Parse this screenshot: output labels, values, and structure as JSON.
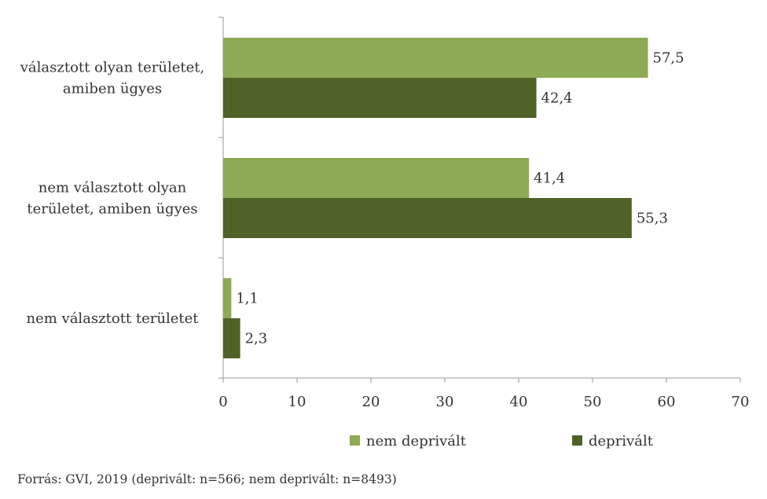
{
  "chart_data": {
    "type": "bar",
    "orientation": "horizontal",
    "categories": [
      [
        "választott olyan területet,",
        "amiben ügyes"
      ],
      [
        "nem választott olyan",
        "területet, amiben ügyes"
      ],
      [
        "nem választott területet"
      ]
    ],
    "series": [
      {
        "name": "nem deprivált",
        "color": "#8faa55",
        "values": [
          57.5,
          41.4,
          1.1
        ],
        "labels": [
          "57,5",
          "41,4",
          "1,1"
        ]
      },
      {
        "name": "deprivált",
        "color": "#4f6228",
        "values": [
          42.4,
          55.3,
          2.3
        ],
        "labels": [
          "42,4",
          "55,3",
          "2,3"
        ]
      }
    ],
    "xlim": [
      0,
      70
    ],
    "xticks": [
      0,
      10,
      20,
      30,
      40,
      50,
      60,
      70
    ],
    "grid": false,
    "legend": "bottom"
  },
  "footer": {
    "source": "Forrás: GVI, 2019 (deprivált: n=566; nem deprivált: n=8493)"
  }
}
